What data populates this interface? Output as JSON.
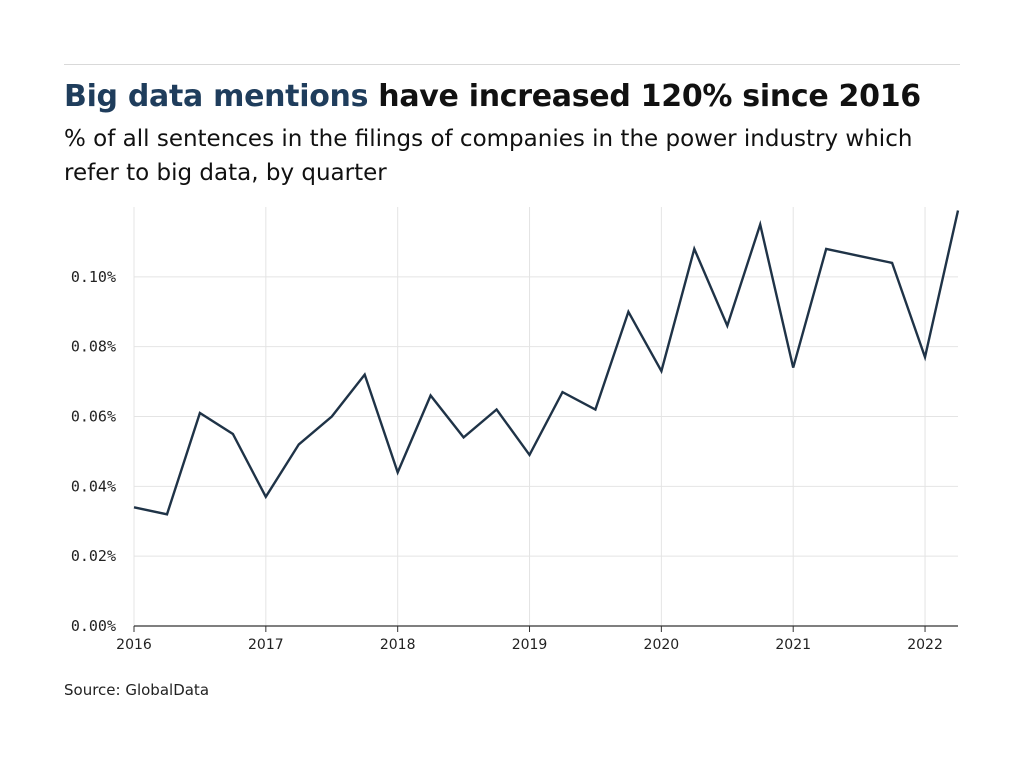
{
  "header": {
    "title_accent": "Big data mentions",
    "title_rest": " have increased 120% since 2016",
    "subtitle": "% of all sentences in the filings of companies in the power industry which refer to big data, by quarter"
  },
  "footer": {
    "source": "Source: GlobalData"
  },
  "colors": {
    "line": "#1f3347",
    "accent": "#1f3d5c",
    "grid": "#e4e4e4",
    "axis": "#333333"
  },
  "chart_data": {
    "type": "line",
    "title": "Big data mentions have increased 120% since 2016",
    "subtitle": "% of all sentences in the filings of companies in the power industry which refer to big data, by quarter",
    "xlabel": "",
    "ylabel": "",
    "grid": true,
    "x_ticks": [
      "2016",
      "2017",
      "2018",
      "2019",
      "2020",
      "2021",
      "2022"
    ],
    "y_ticks": [
      "0.00%",
      "0.02%",
      "0.04%",
      "0.06%",
      "0.08%",
      "0.10%"
    ],
    "xlim": [
      "2016 Q1",
      "2022 Q2"
    ],
    "ylim": [
      0,
      0.12
    ],
    "series": [
      {
        "x": [
          "2016 Q1",
          "2016 Q2",
          "2016 Q3",
          "2016 Q4",
          "2017 Q1",
          "2017 Q2",
          "2017 Q3",
          "2017 Q4",
          "2018 Q1",
          "2018 Q2",
          "2018 Q3",
          "2018 Q4",
          "2019 Q1",
          "2019 Q2",
          "2019 Q3",
          "2019 Q4",
          "2020 Q1",
          "2020 Q2",
          "2020 Q3",
          "2020 Q4",
          "2021 Q1",
          "2021 Q2",
          "2021 Q3",
          "2021 Q4",
          "2022 Q1",
          "2022 Q2"
        ],
        "values": [
          0.034,
          0.032,
          0.061,
          0.055,
          0.037,
          0.052,
          0.06,
          0.072,
          0.044,
          0.066,
          0.054,
          0.062,
          0.049,
          0.067,
          0.062,
          0.09,
          0.073,
          0.108,
          0.086,
          0.115,
          0.074,
          0.108,
          0.106,
          0.104,
          0.077,
          0.119
        ]
      }
    ]
  }
}
